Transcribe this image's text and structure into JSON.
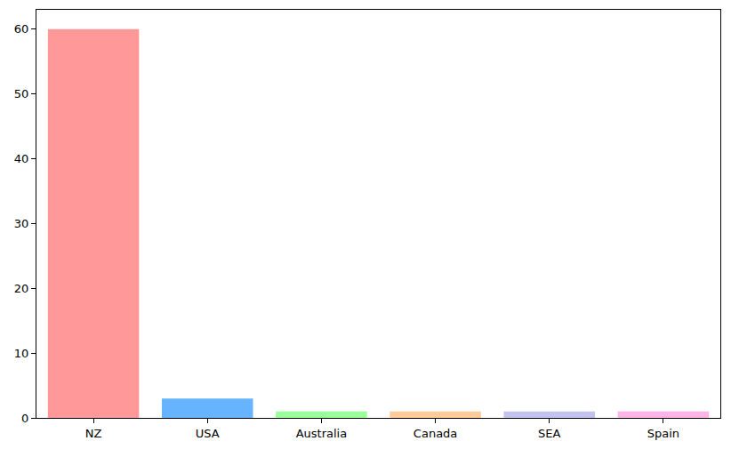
{
  "chart_data": {
    "type": "bar",
    "categories": [
      "NZ",
      "USA",
      "Australia",
      "Canada",
      "SEA",
      "Spain"
    ],
    "values": [
      60,
      3,
      1,
      1,
      1,
      1
    ],
    "colors": [
      "#ff9999",
      "#66b3ff",
      "#99ff99",
      "#ffcc99",
      "#c2c2f0",
      "#ffb3e6"
    ],
    "ylim": [
      0,
      63
    ],
    "yticks": [
      0,
      10,
      20,
      30,
      40,
      50,
      60
    ],
    "grid": false
  }
}
